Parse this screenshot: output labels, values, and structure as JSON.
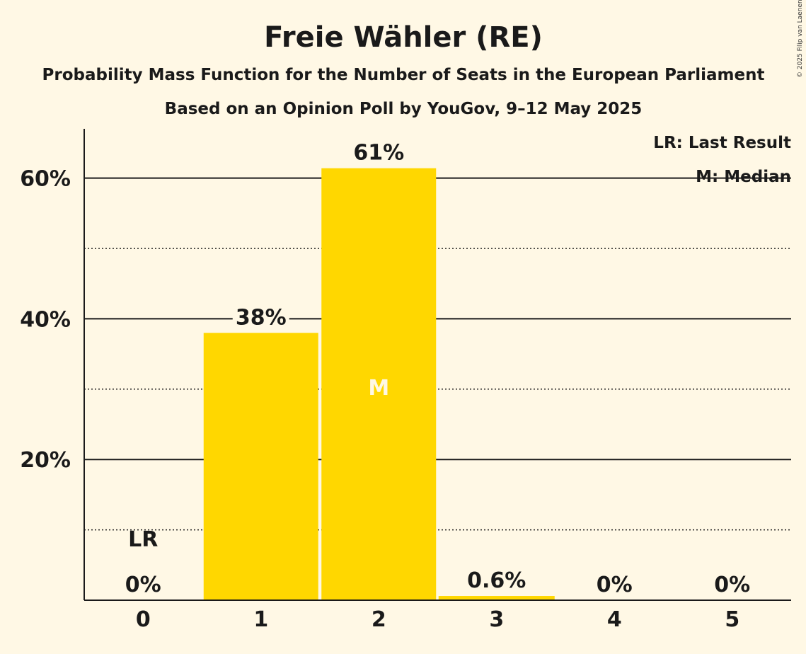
{
  "chart_data": {
    "type": "bar",
    "title": "Freie Wähler (RE)",
    "subtitle": "Probability Mass Function for the Number of Seats in the European Parliament",
    "subtitle2": "Based on an Opinion Poll by YouGov, 9–12 May 2025",
    "copyright": "© 2025 Filip van Laenen",
    "categories": [
      "0",
      "1",
      "2",
      "3",
      "4",
      "5"
    ],
    "values": [
      0,
      38,
      61.4,
      0.6,
      0,
      0
    ],
    "value_labels": [
      "0%",
      "38%",
      "61%",
      "0.6%",
      "0%",
      "0%"
    ],
    "ylim": [
      0,
      67
    ],
    "yticks": [
      {
        "value": 20,
        "label": "20%"
      },
      {
        "value": 40,
        "label": "40%"
      },
      {
        "value": 60,
        "label": "60%"
      }
    ],
    "minor_gridlines": [
      10,
      30,
      50
    ],
    "last_result": {
      "category": "0",
      "label": "LR"
    },
    "median": {
      "category": "2",
      "label": "M"
    },
    "legend": [
      "LR: Last Result",
      "M: Median"
    ],
    "legend_position": "top-right",
    "bar_color": "#FFD700",
    "background_color": "#FFF8E5",
    "grid": true
  }
}
